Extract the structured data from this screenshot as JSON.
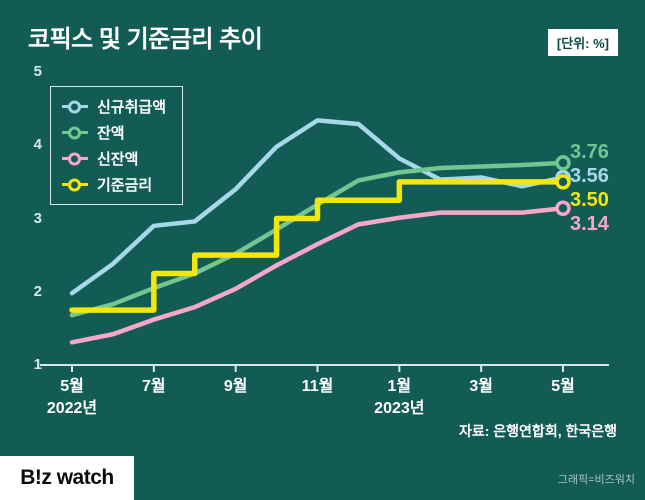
{
  "title": "코픽스 및 기준금리 추이",
  "unit_badge": "[단위: %]",
  "source": "자료: 은행연합회, 한국은행",
  "credit": "그래픽=비즈워치",
  "logo": "B!z watch",
  "colors": {
    "background": "#135C56",
    "axis": "#D7E9E6",
    "text": "#FFFFFF",
    "badge_text": "#0D4B46"
  },
  "chart_data": {
    "type": "line",
    "title": "코픽스 및 기준금리 추이",
    "unit": "%",
    "ylim": [
      1,
      5
    ],
    "y_ticks": [
      1,
      2,
      3,
      4,
      5
    ],
    "x_tick_labels": [
      "5월",
      "7월",
      "9월",
      "11월",
      "1월",
      "3월",
      "5월"
    ],
    "x_year_labels": [
      {
        "text": "2022년",
        "month_index": 0
      },
      {
        "text": "2023년",
        "month_index": 8
      }
    ],
    "n_points": 13,
    "grid": false,
    "legend_position": "upper-left",
    "series": [
      {
        "name": "신규취급액",
        "color": "#A6D8EA",
        "step": false,
        "values": [
          1.98,
          2.38,
          2.9,
          2.96,
          3.4,
          3.98,
          4.34,
          4.29,
          3.82,
          3.53,
          3.56,
          3.44,
          3.56
        ],
        "end_label": "3.56"
      },
      {
        "name": "잔액",
        "color": "#74C591",
        "step": false,
        "values": [
          1.68,
          1.83,
          2.05,
          2.25,
          2.52,
          2.85,
          3.19,
          3.52,
          3.63,
          3.69,
          3.71,
          3.73,
          3.76
        ],
        "end_label": "3.76"
      },
      {
        "name": "신잔액",
        "color": "#F7A8C9",
        "step": false,
        "values": [
          1.31,
          1.42,
          1.62,
          1.79,
          2.04,
          2.36,
          2.65,
          2.92,
          3.01,
          3.08,
          3.08,
          3.08,
          3.14
        ],
        "end_label": "3.14"
      },
      {
        "name": "기준금리",
        "color": "#F2E60C",
        "step": true,
        "values": [
          1.75,
          1.75,
          2.25,
          2.5,
          2.5,
          3.0,
          3.25,
          3.25,
          3.5,
          3.5,
          3.5,
          3.5,
          3.5
        ],
        "end_label": "3.50"
      }
    ]
  }
}
